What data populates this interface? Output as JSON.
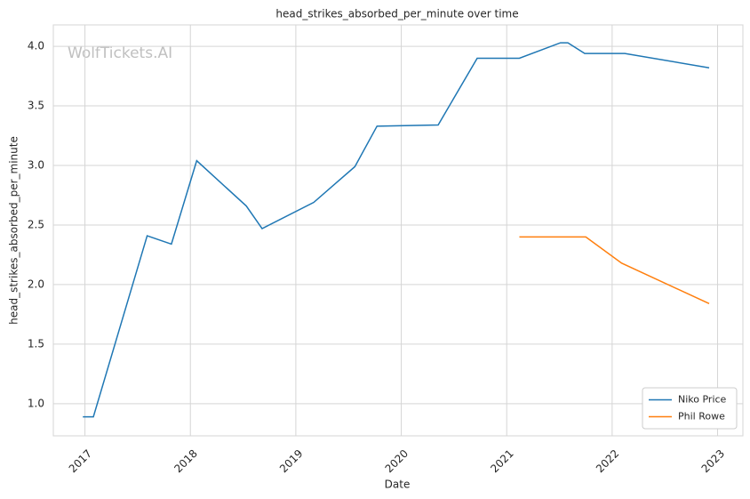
{
  "chart_data": {
    "type": "line",
    "title": "head_strikes_absorbed_per_minute over time",
    "x_label": "Date",
    "y_label": "head_strikes_absorbed_per_minute",
    "watermark": "WolfTickets.AI",
    "xlim": [
      2016.7,
      2023.24
    ],
    "ylim": [
      0.73,
      4.18
    ],
    "xticks": [
      2017,
      2018,
      2019,
      2020,
      2021,
      2022,
      2023
    ],
    "yticks": [
      {
        "value": 1,
        "label": "1.0"
      },
      {
        "value": 1.5,
        "label": "1.5"
      },
      {
        "value": 2,
        "label": "2.0"
      },
      {
        "value": 2.5,
        "label": "2.5"
      },
      {
        "value": 3,
        "label": "3.0"
      },
      {
        "value": 3.5,
        "label": "3.5"
      },
      {
        "value": 4,
        "label": "4.0"
      }
    ],
    "grid": true,
    "legend": "lower right",
    "series": [
      {
        "name": "Niko Price",
        "color": "#1f77b4",
        "x": [
          2016.98,
          2017.08,
          2017.59,
          2017.82,
          2018.06,
          2018.53,
          2018.68,
          2019.17,
          2019.56,
          2019.77,
          2020.35,
          2020.72,
          2021.12,
          2021.51,
          2021.58,
          2021.74,
          2022.12,
          2022.92
        ],
        "values": [
          0.89,
          0.89,
          2.41,
          2.34,
          3.04,
          2.66,
          2.47,
          2.69,
          2.99,
          3.33,
          3.34,
          3.9,
          3.9,
          4.03,
          4.03,
          3.94,
          3.94,
          3.82
        ]
      },
      {
        "name": "Phil Rowe",
        "color": "#ff7f0e",
        "x": [
          2021.12,
          2021.75,
          2022.09,
          2022.92
        ],
        "values": [
          2.4,
          2.4,
          2.18,
          1.84
        ]
      }
    ]
  }
}
